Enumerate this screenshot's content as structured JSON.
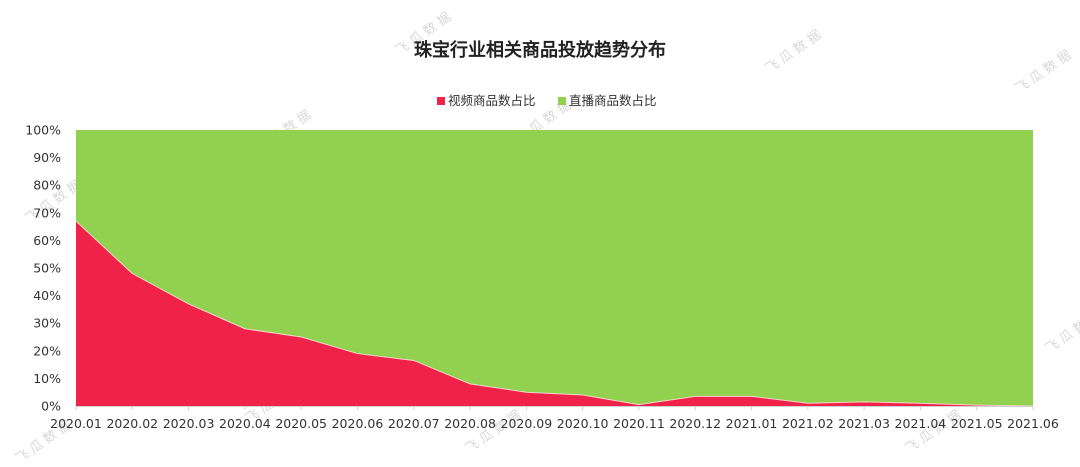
{
  "watermark": "飞瓜数据",
  "chart_data": {
    "type": "area",
    "stacked": "percent",
    "title": "珠宝行业相关商品投放趋势分布",
    "categories": [
      "2020.01",
      "2020.02",
      "2020.03",
      "2020.04",
      "2020.05",
      "2020.06",
      "2020.07",
      "2020.08",
      "2020.09",
      "2020.10",
      "2020.11",
      "2020.12",
      "2021.01",
      "2021.02",
      "2021.03",
      "2021.04",
      "2021.05",
      "2021.06"
    ],
    "series": [
      {
        "name": "视频商品数占比",
        "color": "#f0224a",
        "values": [
          67,
          48,
          37,
          28,
          25,
          19,
          16.5,
          8,
          5,
          4,
          0.5,
          3.5,
          3.5,
          1,
          1.5,
          1,
          0.3,
          0
        ]
      },
      {
        "name": "直播商品数占比",
        "color": "#92d050",
        "values": [
          33,
          52,
          63,
          72,
          75,
          81,
          83.5,
          92,
          95,
          96,
          99.5,
          96.5,
          96.5,
          99,
          98.5,
          99,
          99.7,
          100
        ]
      }
    ],
    "ylim": [
      0,
      100
    ],
    "yticks": [
      "0%",
      "10%",
      "20%",
      "30%",
      "40%",
      "50%",
      "60%",
      "70%",
      "80%",
      "90%",
      "100%"
    ],
    "xlabel": "",
    "ylabel": "",
    "legend": "top-center",
    "grid": false
  }
}
